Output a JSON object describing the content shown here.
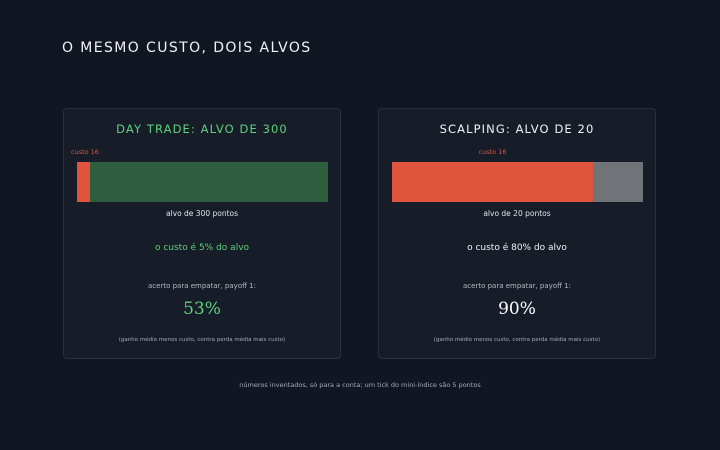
{
  "page": {
    "title": "O MESMO CUSTO, DOIS ALVOS",
    "footnote": "números inventados, só para a conta; um tick do mini-índice são 5 pontos"
  },
  "colors": {
    "cost": "#e0533d",
    "green_accent": "#5fcf7e",
    "green_rest": "#2f5e3f",
    "gray_rest": "#707478",
    "background": "#111722",
    "card": "#171d28"
  },
  "cards": [
    {
      "title": "DAY TRADE: ALVO DE 300",
      "cost_label": "custo 16",
      "cost_points": 16,
      "target_points": 300,
      "bar_caption": "alvo de 300 pontos",
      "pct_line": "o custo é 5% do alvo",
      "breakeven_label": "acerto para empatar, payoff 1:",
      "breakeven_value": "53%",
      "formula": "(ganho médio menos custo, contra perda média mais custo)"
    },
    {
      "title": "SCALPING: ALVO DE 20",
      "cost_label": "custo 16",
      "cost_points": 16,
      "target_points": 20,
      "bar_caption": "alvo de 20 pontos",
      "pct_line": "o custo é 80% do alvo",
      "breakeven_label": "acerto para empatar, payoff 1:",
      "breakeven_value": "90%",
      "formula": "(ganho médio menos custo, contra perda média mais custo)"
    }
  ]
}
